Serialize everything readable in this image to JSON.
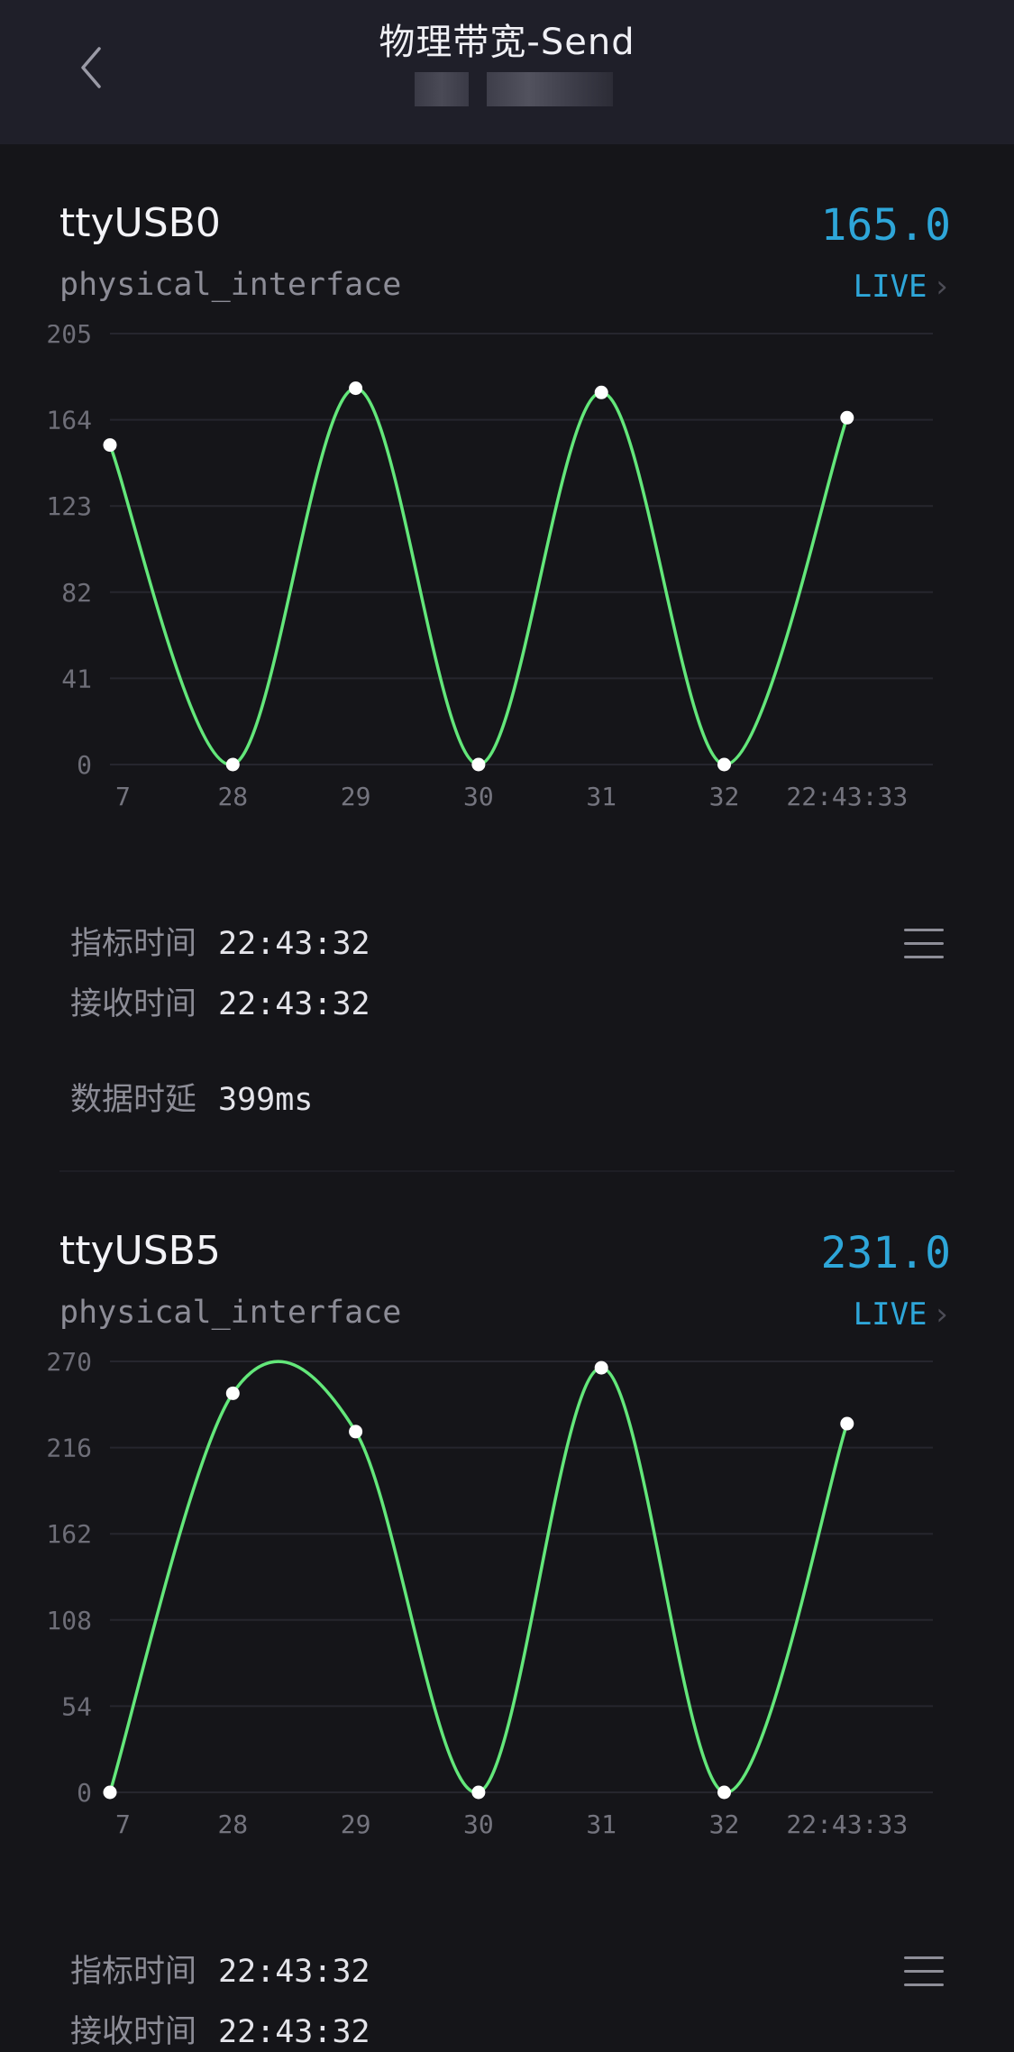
{
  "header": {
    "title": "物理带宽-Send"
  },
  "panels": [
    {
      "name": "ttyUSB0",
      "type": "physical_interface",
      "current_value": "165.0",
      "live_label": "LIVE",
      "chevron": "›",
      "info": {
        "metric_time_label": "指标时间",
        "metric_time": "22:43:32",
        "receive_time_label": "接收时间",
        "receive_time": "22:43:32",
        "latency_label": "数据时延",
        "latency": "399ms"
      }
    },
    {
      "name": "ttyUSB5",
      "type": "physical_interface",
      "current_value": "231.0",
      "live_label": "LIVE",
      "chevron": "›",
      "info": {
        "metric_time_label": "指标时间",
        "metric_time": "22:43:32",
        "receive_time_label": "接收时间",
        "receive_time": "22:43:32"
      }
    }
  ],
  "colors": {
    "accent": "#2ea6d9",
    "line": "#63e77a",
    "background": "#151519",
    "header_bg": "#1f1f29"
  },
  "icons": {
    "back": "chevron-left-icon",
    "menu": "hamburger-menu-icon",
    "live_chevron": "chevron-right-icon"
  },
  "chart_data": [
    {
      "type": "line",
      "title": "",
      "x": [
        "7",
        "28",
        "29",
        "30",
        "31",
        "32",
        "22:43:33"
      ],
      "series": [
        {
          "values": [
            152,
            0,
            179,
            0,
            177,
            0,
            165
          ]
        }
      ],
      "yticks": [
        0,
        41,
        82,
        123,
        164,
        205
      ],
      "ylim": [
        0,
        205
      ],
      "grid": true,
      "smooth": true
    },
    {
      "type": "line",
      "title": "",
      "x": [
        "7",
        "28",
        "29",
        "30",
        "31",
        "32",
        "22:43:33"
      ],
      "series": [
        {
          "values": [
            0,
            250,
            226,
            0,
            266,
            0,
            231
          ]
        }
      ],
      "yticks": [
        0,
        54,
        108,
        162,
        216,
        270
      ],
      "ylim": [
        0,
        270
      ],
      "grid": true,
      "smooth": true
    }
  ]
}
